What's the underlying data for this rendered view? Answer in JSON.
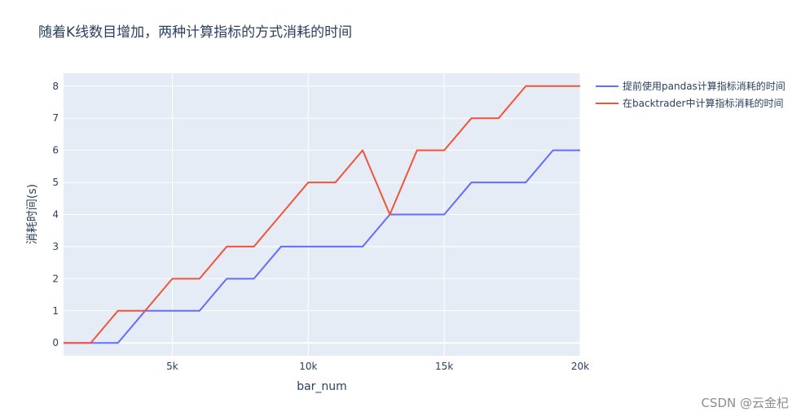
{
  "chart_data": {
    "type": "line",
    "title": "随着K线数目增加，两种计算指标的方式消耗的时间",
    "xlabel": "bar_num",
    "ylabel": "消耗时间(s)",
    "xlim": [
      1000,
      20000
    ],
    "ylim": [
      -0.4,
      8.4
    ],
    "x_ticks": [
      5000,
      10000,
      15000,
      20000
    ],
    "x_tick_labels": [
      "5k",
      "10k",
      "15k",
      "20k"
    ],
    "y_ticks": [
      0,
      1,
      2,
      3,
      4,
      5,
      6,
      7,
      8
    ],
    "y_tick_labels": [
      "0",
      "1",
      "2",
      "3",
      "4",
      "5",
      "6",
      "7",
      "8"
    ],
    "grid": true,
    "legend_position": "top-right, outside plot",
    "x": [
      1000,
      2000,
      3000,
      4000,
      5000,
      6000,
      7000,
      8000,
      9000,
      10000,
      11000,
      12000,
      13000,
      14000,
      15000,
      16000,
      17000,
      18000,
      19000,
      20000
    ],
    "series": [
      {
        "name": "提前使用pandas计算指标消耗的时间",
        "color": "#636efa",
        "values": [
          0,
          0,
          0,
          1,
          1,
          1,
          2,
          2,
          3,
          3,
          3,
          3,
          4,
          4,
          4,
          5,
          5,
          5,
          6,
          6
        ]
      },
      {
        "name": "在backtrader中计算指标消耗的时间",
        "color": "#ef553b",
        "values": [
          0,
          0,
          1,
          1,
          2,
          2,
          3,
          3,
          4,
          5,
          5,
          6,
          4,
          6,
          6,
          7,
          7,
          8,
          8,
          8
        ]
      }
    ],
    "plot_bgcolor": "#e5ecf6",
    "grid_color": "#ffffff"
  },
  "watermark": "CSDN @云金杞"
}
